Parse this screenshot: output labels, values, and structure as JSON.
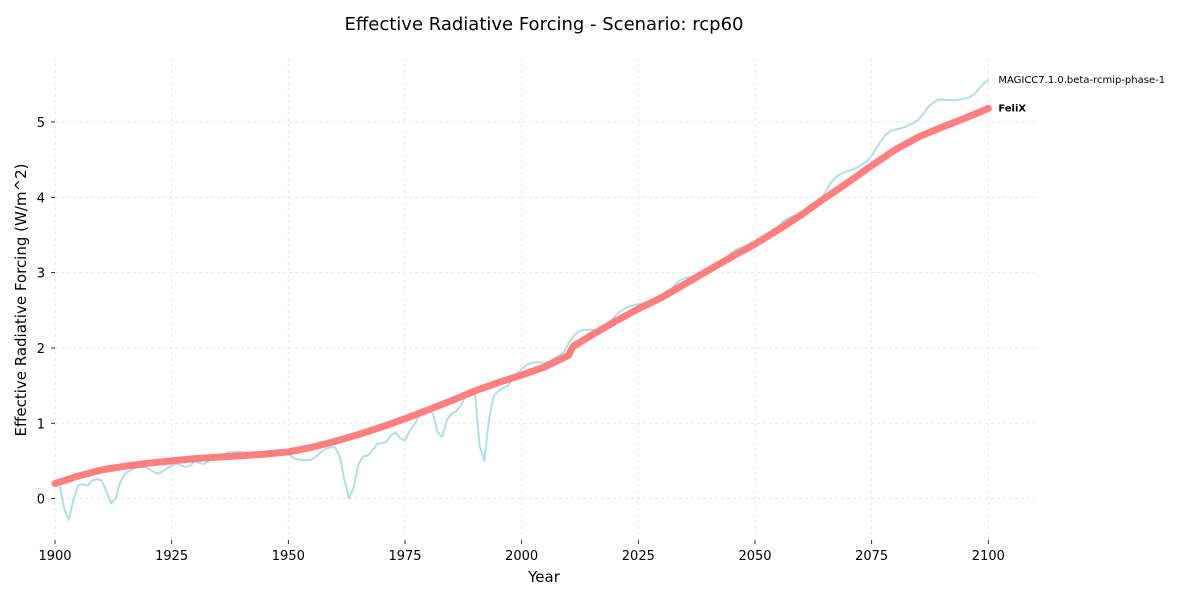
{
  "chart_data": {
    "type": "line",
    "title": "Effective Radiative Forcing - Scenario: rcp60",
    "xlabel": "Year",
    "ylabel": "Effective Radiative Forcing (W/m^2)",
    "xlim": [
      1900,
      2110
    ],
    "ylim": [
      -0.55,
      5.85
    ],
    "xticks": [
      1900,
      1925,
      1950,
      1975,
      2000,
      2025,
      2050,
      2075,
      2100
    ],
    "yticks": [
      0,
      1,
      2,
      3,
      4,
      5
    ],
    "grid": true,
    "legend": "end-of-line labels",
    "series": [
      {
        "name": "MAGICC7.1.0.beta-rcmip-phase-1",
        "color": "#b0e0e6",
        "points": [
          [
            1900,
            0.2
          ],
          [
            1901,
            0.18
          ],
          [
            1902,
            -0.15
          ],
          [
            1903,
            -0.28
          ],
          [
            1904,
            0.0
          ],
          [
            1905,
            0.18
          ],
          [
            1906,
            0.19
          ],
          [
            1907,
            0.17
          ],
          [
            1908,
            0.24
          ],
          [
            1909,
            0.26
          ],
          [
            1910,
            0.24
          ],
          [
            1911,
            0.1
          ],
          [
            1912,
            -0.06
          ],
          [
            1913,
            0.0
          ],
          [
            1914,
            0.22
          ],
          [
            1915,
            0.33
          ],
          [
            1916,
            0.37
          ],
          [
            1917,
            0.4
          ],
          [
            1918,
            0.42
          ],
          [
            1919,
            0.42
          ],
          [
            1920,
            0.4
          ],
          [
            1921,
            0.36
          ],
          [
            1922,
            0.33
          ],
          [
            1923,
            0.36
          ],
          [
            1924,
            0.4
          ],
          [
            1925,
            0.44
          ],
          [
            1926,
            0.46
          ],
          [
            1927,
            0.44
          ],
          [
            1928,
            0.42
          ],
          [
            1929,
            0.44
          ],
          [
            1930,
            0.5
          ],
          [
            1931,
            0.47
          ],
          [
            1932,
            0.46
          ],
          [
            1933,
            0.5
          ],
          [
            1934,
            0.54
          ],
          [
            1935,
            0.56
          ],
          [
            1936,
            0.58
          ],
          [
            1937,
            0.61
          ],
          [
            1938,
            0.62
          ],
          [
            1939,
            0.62
          ],
          [
            1940,
            0.62
          ],
          [
            1941,
            0.6
          ],
          [
            1942,
            0.59
          ],
          [
            1943,
            0.57
          ],
          [
            1944,
            0.56
          ],
          [
            1945,
            0.58
          ],
          [
            1946,
            0.6
          ],
          [
            1947,
            0.62
          ],
          [
            1948,
            0.62
          ],
          [
            1949,
            0.62
          ],
          [
            1950,
            0.6
          ],
          [
            1951,
            0.54
          ],
          [
            1952,
            0.52
          ],
          [
            1953,
            0.51
          ],
          [
            1954,
            0.51
          ],
          [
            1955,
            0.52
          ],
          [
            1956,
            0.56
          ],
          [
            1957,
            0.62
          ],
          [
            1958,
            0.66
          ],
          [
            1959,
            0.68
          ],
          [
            1960,
            0.68
          ],
          [
            1961,
            0.56
          ],
          [
            1962,
            0.25
          ],
          [
            1963,
            0.0
          ],
          [
            1964,
            0.15
          ],
          [
            1965,
            0.45
          ],
          [
            1966,
            0.56
          ],
          [
            1967,
            0.57
          ],
          [
            1968,
            0.64
          ],
          [
            1969,
            0.72
          ],
          [
            1970,
            0.74
          ],
          [
            1971,
            0.75
          ],
          [
            1972,
            0.84
          ],
          [
            1973,
            0.88
          ],
          [
            1974,
            0.8
          ],
          [
            1975,
            0.77
          ],
          [
            1976,
            0.9
          ],
          [
            1977,
            0.98
          ],
          [
            1978,
            1.1
          ],
          [
            1979,
            1.16
          ],
          [
            1980,
            1.2
          ],
          [
            1981,
            1.12
          ],
          [
            1982,
            0.88
          ],
          [
            1983,
            0.82
          ],
          [
            1984,
            1.05
          ],
          [
            1985,
            1.13
          ],
          [
            1986,
            1.16
          ],
          [
            1987,
            1.24
          ],
          [
            1988,
            1.36
          ],
          [
            1989,
            1.43
          ],
          [
            1990,
            1.4
          ],
          [
            1991,
            0.7
          ],
          [
            1992,
            0.5
          ],
          [
            1993,
            1.05
          ],
          [
            1994,
            1.36
          ],
          [
            1995,
            1.43
          ],
          [
            1996,
            1.47
          ],
          [
            1997,
            1.5
          ],
          [
            1998,
            1.58
          ],
          [
            1999,
            1.66
          ],
          [
            2000,
            1.72
          ],
          [
            2001,
            1.77
          ],
          [
            2002,
            1.8
          ],
          [
            2003,
            1.81
          ],
          [
            2004,
            1.81
          ],
          [
            2005,
            1.8
          ],
          [
            2006,
            1.82
          ],
          [
            2007,
            1.86
          ],
          [
            2008,
            1.9
          ],
          [
            2009,
            1.94
          ],
          [
            2010,
            2.06
          ],
          [
            2011,
            2.15
          ],
          [
            2012,
            2.21
          ],
          [
            2013,
            2.24
          ],
          [
            2014,
            2.24
          ],
          [
            2015,
            2.24
          ],
          [
            2016,
            2.24
          ],
          [
            2017,
            2.27
          ],
          [
            2018,
            2.31
          ],
          [
            2019,
            2.36
          ],
          [
            2020,
            2.42
          ],
          [
            2021,
            2.48
          ],
          [
            2022,
            2.52
          ],
          [
            2023,
            2.55
          ],
          [
            2024,
            2.57
          ],
          [
            2025,
            2.58
          ],
          [
            2026,
            2.59
          ],
          [
            2027,
            2.61
          ],
          [
            2028,
            2.63
          ],
          [
            2029,
            2.65
          ],
          [
            2030,
            2.69
          ],
          [
            2031,
            2.73
          ],
          [
            2032,
            2.78
          ],
          [
            2033,
            2.85
          ],
          [
            2034,
            2.9
          ],
          [
            2035,
            2.93
          ],
          [
            2036,
            2.94
          ],
          [
            2037,
            2.94
          ],
          [
            2038,
            2.96
          ],
          [
            2039,
            2.99
          ],
          [
            2040,
            3.02
          ],
          [
            2041,
            3.05
          ],
          [
            2042,
            3.08
          ],
          [
            2043,
            3.12
          ],
          [
            2044,
            3.19
          ],
          [
            2045,
            3.27
          ],
          [
            2046,
            3.31
          ],
          [
            2047,
            3.33
          ],
          [
            2048,
            3.33
          ],
          [
            2049,
            3.34
          ],
          [
            2050,
            3.36
          ],
          [
            2051,
            3.39
          ],
          [
            2052,
            3.42
          ],
          [
            2053,
            3.47
          ],
          [
            2054,
            3.53
          ],
          [
            2055,
            3.61
          ],
          [
            2056,
            3.68
          ],
          [
            2057,
            3.72
          ],
          [
            2058,
            3.75
          ],
          [
            2059,
            3.76
          ],
          [
            2060,
            3.77
          ],
          [
            2061,
            3.8
          ],
          [
            2062,
            3.85
          ],
          [
            2063,
            3.9
          ],
          [
            2064,
            3.96
          ],
          [
            2065,
            4.06
          ],
          [
            2066,
            4.17
          ],
          [
            2067,
            4.25
          ],
          [
            2068,
            4.3
          ],
          [
            2069,
            4.33
          ],
          [
            2070,
            4.35
          ],
          [
            2071,
            4.37
          ],
          [
            2072,
            4.4
          ],
          [
            2073,
            4.44
          ],
          [
            2074,
            4.48
          ],
          [
            2075,
            4.55
          ],
          [
            2076,
            4.65
          ],
          [
            2077,
            4.75
          ],
          [
            2078,
            4.83
          ],
          [
            2079,
            4.88
          ],
          [
            2080,
            4.9
          ],
          [
            2081,
            4.91
          ],
          [
            2082,
            4.93
          ],
          [
            2083,
            4.96
          ],
          [
            2084,
            4.99
          ],
          [
            2085,
            5.03
          ],
          [
            2086,
            5.1
          ],
          [
            2087,
            5.19
          ],
          [
            2088,
            5.25
          ],
          [
            2089,
            5.29
          ],
          [
            2090,
            5.3
          ],
          [
            2091,
            5.29
          ],
          [
            2092,
            5.29
          ],
          [
            2093,
            5.29
          ],
          [
            2094,
            5.3
          ],
          [
            2095,
            5.31
          ],
          [
            2096,
            5.33
          ],
          [
            2097,
            5.37
          ],
          [
            2098,
            5.44
          ],
          [
            2099,
            5.51
          ],
          [
            2100,
            5.56
          ]
        ]
      },
      {
        "name": "FeliX",
        "color": "#ff7f7f",
        "points": [
          [
            1900,
            0.2
          ],
          [
            1905,
            0.3
          ],
          [
            1910,
            0.38
          ],
          [
            1915,
            0.43
          ],
          [
            1920,
            0.47
          ],
          [
            1925,
            0.5
          ],
          [
            1930,
            0.53
          ],
          [
            1935,
            0.55
          ],
          [
            1940,
            0.57
          ],
          [
            1945,
            0.59
          ],
          [
            1950,
            0.62
          ],
          [
            1955,
            0.68
          ],
          [
            1960,
            0.76
          ],
          [
            1965,
            0.85
          ],
          [
            1970,
            0.95
          ],
          [
            1975,
            1.06
          ],
          [
            1980,
            1.18
          ],
          [
            1985,
            1.3
          ],
          [
            1990,
            1.43
          ],
          [
            1995,
            1.54
          ],
          [
            2000,
            1.64
          ],
          [
            2005,
            1.75
          ],
          [
            2010,
            1.9
          ],
          [
            2011,
            2.02
          ],
          [
            2015,
            2.17
          ],
          [
            2020,
            2.35
          ],
          [
            2025,
            2.52
          ],
          [
            2030,
            2.67
          ],
          [
            2035,
            2.85
          ],
          [
            2040,
            3.03
          ],
          [
            2045,
            3.21
          ],
          [
            2050,
            3.38
          ],
          [
            2055,
            3.57
          ],
          [
            2060,
            3.77
          ],
          [
            2065,
            3.99
          ],
          [
            2070,
            4.2
          ],
          [
            2075,
            4.42
          ],
          [
            2080,
            4.63
          ],
          [
            2085,
            4.8
          ],
          [
            2090,
            4.93
          ],
          [
            2095,
            5.05
          ],
          [
            2100,
            5.18
          ]
        ]
      }
    ]
  }
}
